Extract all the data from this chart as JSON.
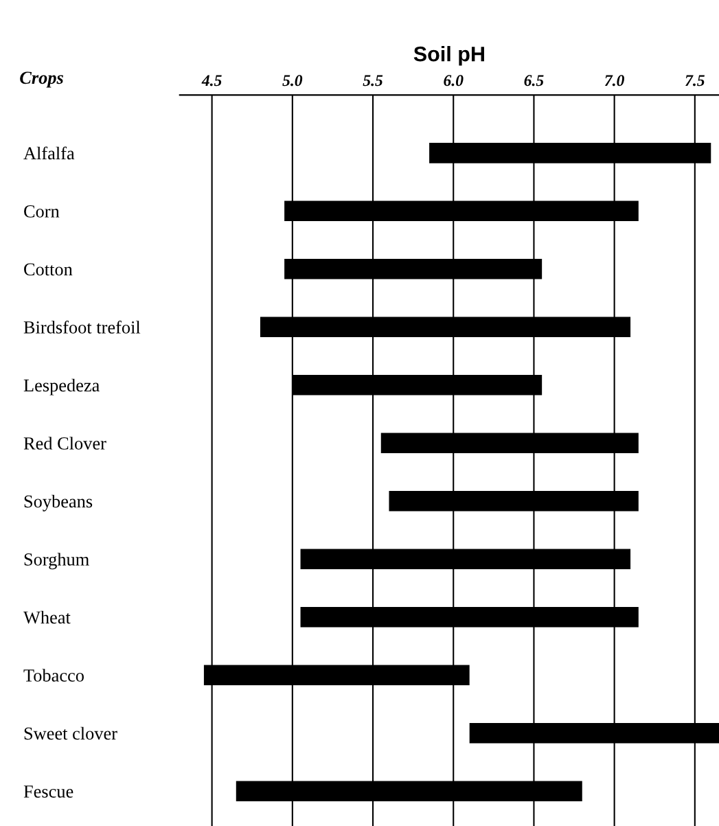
{
  "chart_data": {
    "type": "bar",
    "orientation": "horizontal",
    "xlabel": "Soil pH",
    "ylabel": "Crops",
    "categories": [
      "Alfalfa",
      "Corn",
      "Cotton",
      "Birdsfoot trefoil",
      "Lespedeza",
      "Red Clover",
      "Soybeans",
      "Sorghum",
      "Wheat",
      "Tobacco",
      "Sweet clover",
      "Fescue"
    ],
    "base": [
      5.85,
      4.95,
      4.95,
      4.8,
      5.0,
      5.55,
      5.6,
      5.05,
      5.05,
      4.45,
      6.1,
      4.65
    ],
    "values": [
      1.75,
      2.2,
      1.6,
      2.3,
      1.55,
      1.6,
      1.55,
      2.05,
      2.1,
      1.65,
      1.55,
      2.15
    ],
    "color": "#000000",
    "xlim": [
      4.3,
      7.65
    ],
    "xticks": [
      4.5,
      {
        "value": 5,
        "label": "5.0"
      },
      5.5,
      {
        "value": 6,
        "label": "6.0"
      },
      6.5,
      {
        "value": 7,
        "label": "7.0"
      },
      7.5
    ],
    "grid": "x"
  }
}
